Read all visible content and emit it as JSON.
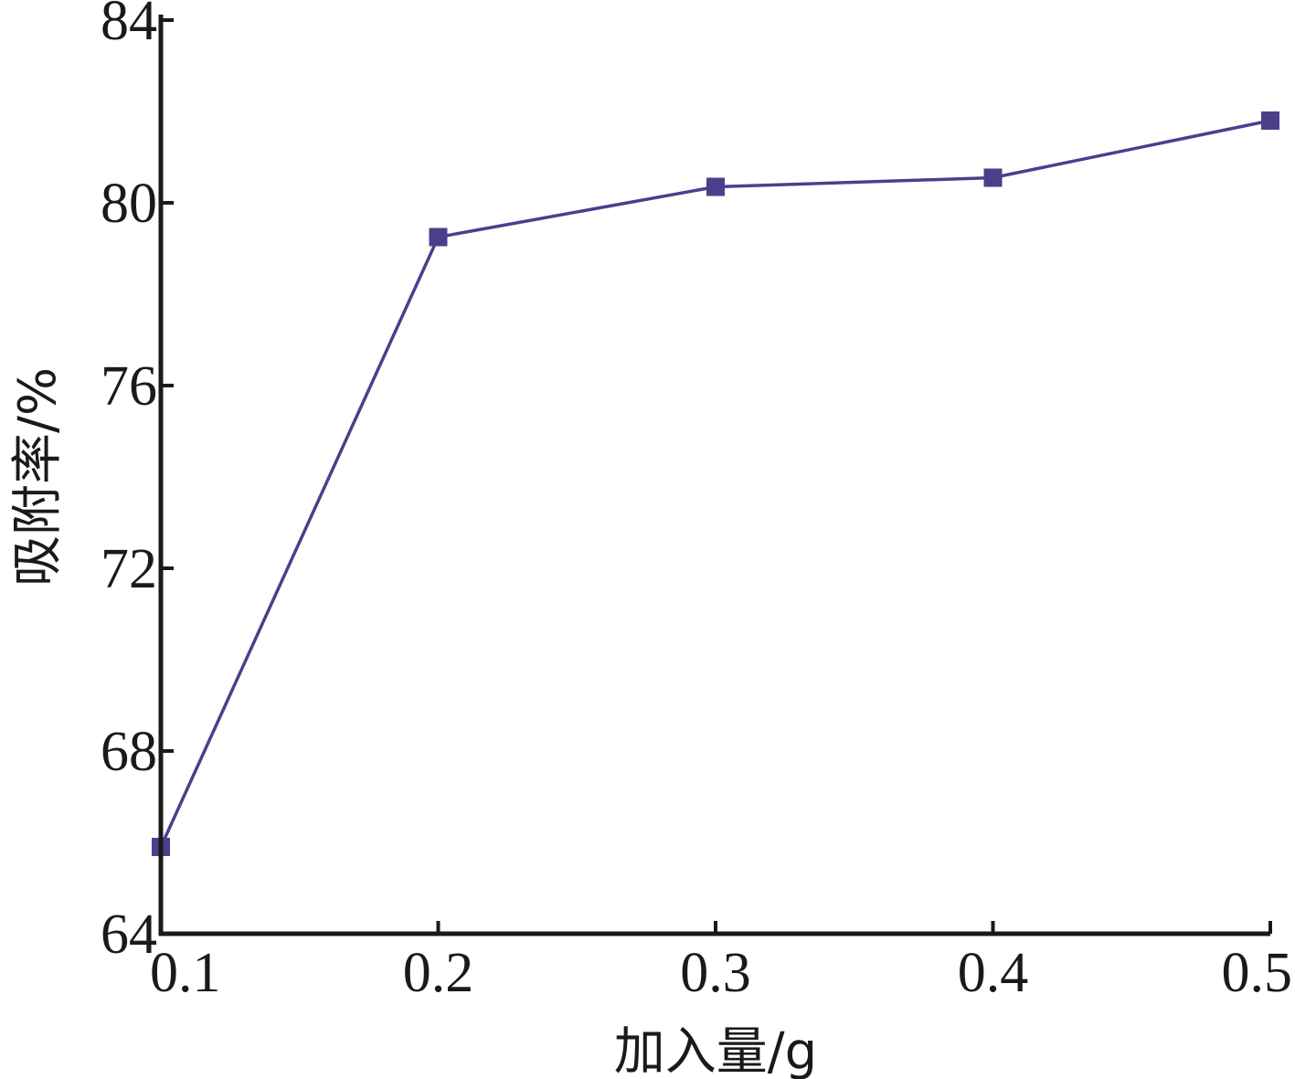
{
  "chart_data": {
    "type": "line",
    "title": "",
    "xlabel": "加入量/g",
    "ylabel": "吸附率/%",
    "xlim": [
      0.1,
      0.5
    ],
    "ylim": [
      64,
      84
    ],
    "xticks": [
      "0.1",
      "0.2",
      "0.3",
      "0.4",
      "0.5"
    ],
    "yticks": [
      "64",
      "68",
      "72",
      "76",
      "80",
      "84"
    ],
    "grid": false,
    "legend": "none",
    "series": [
      {
        "marker": "square",
        "color": "#4b3f8c",
        "x": [
          0.1,
          0.2,
          0.3,
          0.4,
          0.5
        ],
        "y": [
          65.9,
          79.25,
          80.35,
          80.55,
          81.8
        ]
      }
    ]
  }
}
